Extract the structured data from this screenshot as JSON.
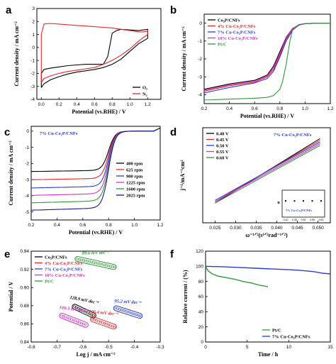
{
  "chart_data": [
    {
      "panel": "a",
      "type": "line",
      "xlabel": "Potential (vs.RHE) / V",
      "ylabel": "Current density / mA cm⁻²",
      "xlim": [
        -0.05,
        1.35
      ],
      "ylim": [
        -4,
        3
      ],
      "xticks": [
        "0.0",
        "0.2",
        "0.4",
        "0.6",
        "0.8",
        "1.0",
        "1.2"
      ],
      "xtick_values": [
        0,
        0.2,
        0.4,
        0.6,
        0.8,
        1.0,
        1.2
      ],
      "yticks": [
        "-4",
        "-3",
        "-2",
        "-1",
        "0",
        "1",
        "2",
        "3"
      ],
      "ytick_values": [
        -4,
        -3,
        -2,
        -1,
        0,
        1,
        2,
        3
      ],
      "legend_position": "bottom-right",
      "series": [
        {
          "name": "O₂",
          "color": "#000000",
          "x": [
            0.0,
            0.03,
            0.1,
            0.2,
            0.3,
            0.4,
            0.5,
            0.6,
            0.7,
            0.8,
            0.9,
            1.0,
            1.1,
            1.2,
            1.2,
            1.15,
            1.1,
            1.0,
            0.9,
            0.85,
            0.8,
            0.75,
            0.7,
            0.6,
            0.5,
            0.4,
            0.3,
            0.2,
            0.1,
            0.03,
            0.0,
            0.0
          ],
          "y": [
            -3.1,
            -2.8,
            -2.5,
            -2.25,
            -2.05,
            -1.9,
            -1.8,
            -1.7,
            -1.55,
            -1.3,
            -0.9,
            -0.3,
            0.3,
            0.7,
            1.4,
            1.35,
            1.3,
            1.35,
            1.4,
            1.3,
            1.1,
            -0.7,
            -1.3,
            -1.3,
            -1.3,
            -1.35,
            -1.4,
            -1.5,
            -1.6,
            -1.7,
            -2.0,
            -3.1
          ]
        },
        {
          "name": "N₂",
          "color": "#e8262a",
          "x": [
            0.0,
            0.03,
            0.1,
            0.2,
            0.3,
            0.4,
            0.5,
            0.6,
            0.7,
            0.8,
            0.9,
            1.0,
            1.1,
            1.2,
            1.2,
            1.15,
            1.1,
            1.0,
            0.9,
            0.8,
            0.7,
            0.6,
            0.5,
            0.4,
            0.3,
            0.2,
            0.1,
            0.03,
            0.0,
            0.0
          ],
          "y": [
            -2.7,
            -2.4,
            -2.2,
            -2.0,
            -1.85,
            -1.75,
            -1.65,
            -1.55,
            -1.3,
            -1.0,
            -0.6,
            -0.1,
            0.5,
            1.0,
            1.25,
            1.2,
            1.2,
            1.3,
            1.4,
            1.5,
            1.55,
            1.6,
            1.65,
            1.7,
            1.75,
            1.8,
            1.85,
            1.8,
            1.0,
            -2.7
          ]
        }
      ]
    },
    {
      "panel": "b",
      "type": "line",
      "xlabel": "Potential (vs.RHE) / V",
      "ylabel": "Current density / mA cm⁻²",
      "xlim": [
        0.2,
        1.2
      ],
      "ylim": [
        -4.5,
        0.5
      ],
      "xticks": [
        "0.2",
        "0.4",
        "0.6",
        "0.8",
        "1.0",
        "1.2"
      ],
      "xtick_values": [
        0.2,
        0.4,
        0.6,
        0.8,
        1.0,
        1.2
      ],
      "yticks": [
        "-4",
        "-3",
        "-2",
        "-1",
        "0"
      ],
      "ytick_values": [
        -4,
        -3,
        -2,
        -1,
        0
      ],
      "legend_position": "top-left",
      "series": [
        {
          "name": "Co₂P/CNFs",
          "color": "#000000",
          "x": [
            0.2,
            0.4,
            0.6,
            0.7,
            0.75,
            0.8,
            0.85,
            0.9,
            0.95,
            1.0,
            1.1,
            1.2
          ],
          "y": [
            -3.7,
            -3.4,
            -3.2,
            -2.9,
            -2.4,
            -1.6,
            -0.8,
            -0.3,
            -0.1,
            -0.03,
            0.0,
            0.0
          ]
        },
        {
          "name": "4% Cu-Co₂P/CNFs",
          "color": "#e8262a",
          "x": [
            0.2,
            0.4,
            0.6,
            0.7,
            0.75,
            0.8,
            0.85,
            0.9,
            0.95,
            1.0,
            1.1,
            1.2
          ],
          "y": [
            -3.8,
            -3.5,
            -3.3,
            -3.0,
            -2.6,
            -1.8,
            -0.9,
            -0.35,
            -0.1,
            -0.03,
            0.0,
            0.0
          ]
        },
        {
          "name": "7% Cu-Co₂P/CNFs",
          "color": "#2a3cd8",
          "x": [
            0.2,
            0.4,
            0.6,
            0.7,
            0.75,
            0.8,
            0.85,
            0.9,
            0.95,
            1.0,
            1.1,
            1.2
          ],
          "y": [
            -3.9,
            -3.6,
            -3.35,
            -3.1,
            -2.7,
            -1.9,
            -1.0,
            -0.4,
            -0.12,
            -0.03,
            0.0,
            0.0
          ]
        },
        {
          "name": "10% Cu-Co₂P/CNFs",
          "color": "#d62fc9",
          "x": [
            0.2,
            0.4,
            0.6,
            0.7,
            0.75,
            0.8,
            0.85,
            0.9,
            0.95,
            1.0,
            1.1,
            1.2
          ],
          "y": [
            -3.75,
            -3.45,
            -3.25,
            -2.95,
            -2.5,
            -1.7,
            -0.85,
            -0.3,
            -0.1,
            -0.03,
            0.0,
            0.0
          ]
        },
        {
          "name": "Pt/C",
          "color": "#2e9a3a",
          "x": [
            0.2,
            0.4,
            0.6,
            0.7,
            0.75,
            0.8,
            0.82,
            0.85,
            0.88,
            0.9,
            0.95,
            1.0,
            1.2
          ],
          "y": [
            -4.3,
            -4.25,
            -4.2,
            -4.15,
            -4.05,
            -3.7,
            -3.3,
            -2.3,
            -1.0,
            -0.4,
            -0.08,
            -0.02,
            0.0
          ]
        }
      ]
    },
    {
      "panel": "c",
      "type": "line",
      "xlabel": "Potential (vs.RHE) / V",
      "ylabel": "Current density / mA cm⁻²",
      "annotation": "7% Cu-Co₂P/CNFs",
      "xlim": [
        0.2,
        1.2
      ],
      "ylim": [
        -5.5,
        0.3
      ],
      "xticks": [
        "0.2",
        "0.4",
        "0.6",
        "0.8",
        "1.0",
        "1.2"
      ],
      "xtick_values": [
        0.2,
        0.4,
        0.6,
        0.8,
        1.0,
        1.2
      ],
      "yticks": [
        "-5",
        "-4",
        "-3",
        "-2",
        "-1",
        "0"
      ],
      "ytick_values": [
        -5,
        -4,
        -3,
        -2,
        -1,
        0
      ],
      "legend_position": "bottom-right",
      "series": [
        {
          "name": "400 rpm",
          "color": "#000000",
          "limit": -2.45
        },
        {
          "name": "625 rpm",
          "color": "#e8262a",
          "limit": -2.95
        },
        {
          "name": "900 rpm",
          "color": "#2a3cd8",
          "limit": -3.45
        },
        {
          "name": "1225 rpm",
          "color": "#d62fc9",
          "limit": -3.9
        },
        {
          "name": "1600 rpm",
          "color": "#2e9a3a",
          "limit": -4.35
        },
        {
          "name": "2025 rpm",
          "color": "#1a1a8c",
          "limit": -4.8
        }
      ]
    },
    {
      "panel": "d",
      "type": "line",
      "xlabel": "ω⁻¹ᐟ²(s¹ᐟ²rad⁻¹ᐟ²)",
      "ylabel": "j⁻¹/mA⁻¹cm²",
      "annotation": "7% Cu-Co₂P/CNFs",
      "xlim": [
        0.022,
        0.053
      ],
      "ylim": [
        0.2,
        0.48
      ],
      "xticks": [
        "0.025",
        "0.030",
        "0.035",
        "0.040",
        "0.045",
        "0.050"
      ],
      "xtick_values": [
        0.025,
        0.03,
        0.035,
        0.04,
        0.045,
        0.05
      ],
      "legend_position": "top-left",
      "series": [
        {
          "name": "0.40 V",
          "color": "#000000",
          "x": [
            0.025,
            0.0505
          ],
          "y": [
            0.258,
            0.448
          ]
        },
        {
          "name": "0.45 V",
          "color": "#e8262a",
          "x": [
            0.025,
            0.0505
          ],
          "y": [
            0.262,
            0.443
          ]
        },
        {
          "name": "0.50 V",
          "color": "#2a3cd8",
          "x": [
            0.025,
            0.0505
          ],
          "y": [
            0.266,
            0.438
          ]
        },
        {
          "name": "0.55 V",
          "color": "#d62fc9",
          "x": [
            0.025,
            0.0505
          ],
          "y": [
            0.262,
            0.433
          ]
        },
        {
          "name": "0.60 V",
          "color": "#2e9a3a",
          "x": [
            0.025,
            0.0505
          ],
          "y": [
            0.258,
            0.428
          ]
        }
      ],
      "inset": {
        "ylabel": "n",
        "annotation": "7% Cu-Co₂P/CNFs",
        "xticks": [
          "0.40",
          "0.45",
          "0.50",
          "0.55",
          "0.60"
        ],
        "xtick_values": [
          0.4,
          0.45,
          0.5,
          0.55,
          0.6
        ],
        "x": [
          0.4,
          0.45,
          0.5,
          0.55,
          0.6
        ],
        "y": [
          3.9,
          3.9,
          3.9,
          3.9,
          3.9
        ],
        "ylim": [
          3.0,
          4.5
        ]
      }
    },
    {
      "panel": "e",
      "type": "scatter",
      "xlabel": "Log j / mA cm⁻²",
      "ylabel": "Potential / V",
      "xlim": [
        -0.8,
        -0.3
      ],
      "ylim": [
        0.84,
        0.94
      ],
      "xticks": [
        "-0.8",
        "-0.7",
        "-0.6",
        "-0.5",
        "-0.4",
        "-0.3"
      ],
      "xtick_values": [
        -0.8,
        -0.7,
        -0.6,
        -0.5,
        -0.4,
        -0.3
      ],
      "yticks": [
        "0.84",
        "0.86",
        "0.88",
        "0.90",
        "0.92",
        "0.94"
      ],
      "ytick_values": [
        0.84,
        0.86,
        0.88,
        0.9,
        0.92,
        0.94
      ],
      "legend_position": "top-left",
      "series": [
        {
          "name": "Co₂P/CNFs",
          "color": "#000000",
          "slope_label": "128.9 mV dec⁻¹",
          "x": [
            -0.64,
            -0.55
          ],
          "y": [
            0.88,
            0.868
          ]
        },
        {
          "name": "4% Cu-Co₂P/CNFs",
          "color": "#e8262a",
          "slope_label": "106.4 mV dec⁻¹",
          "x": [
            -0.57,
            -0.47
          ],
          "y": [
            0.866,
            0.856
          ]
        },
        {
          "name": "7% Cu-Co₂P/CNFs",
          "color": "#2a3cd8",
          "slope_label": "95.2 mV dec⁻¹",
          "x": [
            -0.48,
            -0.37
          ],
          "y": [
            0.878,
            0.868
          ]
        },
        {
          "name": "10% Cu-Co₂P/CNFs",
          "color": "#d62fc9",
          "slope_label": "109.3 mV dec⁻¹",
          "x": [
            -0.69,
            -0.58
          ],
          "y": [
            0.87,
            0.858
          ]
        },
        {
          "name": "Pt/C",
          "color": "#2e9a3a",
          "slope_label": "89.6 mV dec⁻¹",
          "x": [
            -0.63,
            -0.47
          ],
          "y": [
            0.932,
            0.922
          ]
        }
      ]
    },
    {
      "panel": "f",
      "type": "line",
      "xlabel": "Time / h",
      "ylabel": "Relative current / (%)",
      "xlim": [
        0,
        15
      ],
      "ylim": [
        0,
        120
      ],
      "xticks": [
        "0",
        "5",
        "10",
        "15"
      ],
      "xtick_values": [
        0,
        5,
        10,
        15
      ],
      "yticks": [
        "0",
        "20",
        "40",
        "60",
        "80",
        "100",
        "120"
      ],
      "ytick_values": [
        0,
        20,
        40,
        60,
        80,
        100,
        120
      ],
      "legend_position": "bottom-right",
      "series": [
        {
          "name": "Pt/C",
          "color": "#2e9a3a",
          "x": [
            0,
            0.3,
            0.8,
            1.5,
            2.5,
            3.5,
            4.5,
            5.5,
            6.5,
            7.5
          ],
          "y": [
            100,
            94,
            90,
            87,
            85,
            83,
            80,
            78,
            75,
            73
          ]
        },
        {
          "name": "7% Cu-Co₂P/CNFs",
          "color": "#2a3cd8",
          "x": [
            0,
            2,
            4,
            6,
            8,
            10,
            11,
            12,
            13,
            14,
            15
          ],
          "y": [
            100,
            99.5,
            98.5,
            97.5,
            96.5,
            95.5,
            95,
            94,
            93,
            91,
            90
          ]
        }
      ]
    }
  ]
}
